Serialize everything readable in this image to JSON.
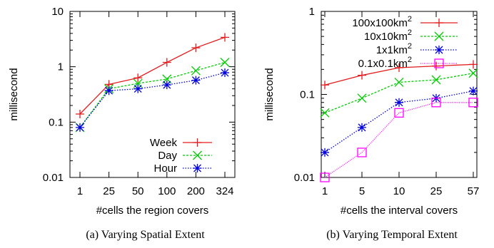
{
  "chart_data": [
    {
      "type": "line",
      "caption": "(a) Varying Spatial Extent",
      "xlabel": "#cells the region covers",
      "ylabel": "millisecond",
      "x_categories": [
        "1",
        "25",
        "50",
        "100",
        "200",
        "324"
      ],
      "y_scale": "log",
      "ylim": [
        0.01,
        10
      ],
      "y_ticks": [
        "0.01",
        "0.1",
        "1",
        "10"
      ],
      "legend_position": "bottom-right",
      "series": [
        {
          "name": "Week",
          "color": "#e41a1c",
          "marker": "plus",
          "values": [
            0.14,
            0.48,
            0.63,
            1.2,
            2.2,
            3.4
          ]
        },
        {
          "name": "Day",
          "color": "#00cc00",
          "marker": "cross",
          "values": [
            0.08,
            0.4,
            0.5,
            0.6,
            0.85,
            1.2
          ]
        },
        {
          "name": "Hour",
          "color": "#0000dd",
          "marker": "star",
          "values": [
            0.08,
            0.37,
            0.4,
            0.47,
            0.57,
            0.78
          ]
        }
      ]
    },
    {
      "type": "line",
      "caption": "(b) Varying Temporal Extent",
      "xlabel": "#cells the interval covers",
      "ylabel": "millisecond",
      "x_categories": [
        "1",
        "5",
        "10",
        "25",
        "57"
      ],
      "y_scale": "log",
      "ylim": [
        0.01,
        1
      ],
      "y_ticks": [
        "0.01",
        "0.1",
        "1"
      ],
      "legend_position": "top-right",
      "series": [
        {
          "name": "100x100km",
          "name_sup": "2",
          "color": "#e41a1c",
          "marker": "plus",
          "values": [
            0.13,
            0.17,
            0.21,
            0.22,
            0.23
          ]
        },
        {
          "name": "10x10km",
          "name_sup": "2",
          "color": "#00cc00",
          "marker": "cross",
          "values": [
            0.06,
            0.09,
            0.14,
            0.15,
            0.18
          ]
        },
        {
          "name": "1x1km",
          "name_sup": "2",
          "color": "#0000dd",
          "marker": "star",
          "values": [
            0.02,
            0.04,
            0.08,
            0.09,
            0.11
          ]
        },
        {
          "name": "0.1x0.1km",
          "name_sup": "2",
          "color": "#ff00ff",
          "marker": "square",
          "values": [
            0.01,
            0.02,
            0.06,
            0.08,
            0.08
          ]
        }
      ]
    }
  ]
}
